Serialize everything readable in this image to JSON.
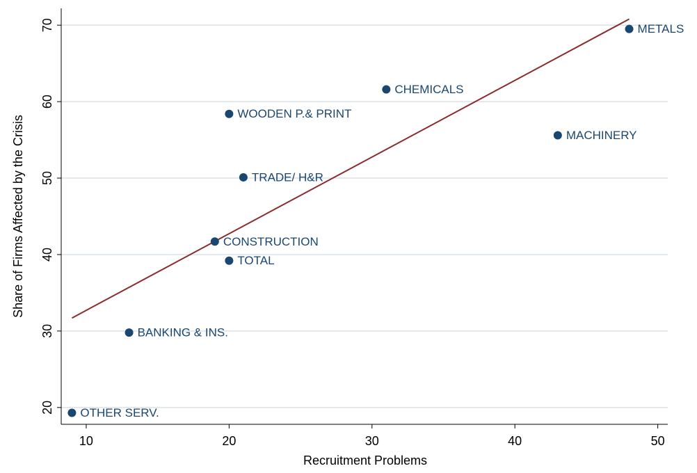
{
  "chart_data": {
    "type": "scatter",
    "x_label": "Recruitment Problems",
    "y_label": "Share of Firms Affected by the Crisis",
    "labels": [
      "METALS",
      "CHEMICALS",
      "WOODEN P.& PRINT",
      "MACHINERY",
      "TRADE/ H&R",
      "CONSTRUCTION",
      "TOTAL",
      "BANKING & INS.",
      "OTHER SERV."
    ],
    "x": [
      48,
      31,
      20,
      43,
      21,
      19,
      20,
      13,
      9
    ],
    "y": [
      69.5,
      61.6,
      58.4,
      55.6,
      50.1,
      41.7,
      39.2,
      29.8,
      19.3
    ],
    "color": "#1a476f",
    "fit": {
      "x": [
        9,
        48
      ],
      "y": [
        31.7,
        70.8
      ],
      "color": "#8b2c2c"
    },
    "xlim": [
      8.25,
      50.7
    ],
    "xticks": [
      10,
      20,
      30,
      40,
      50
    ],
    "ylim": [
      17.8,
      72.2
    ],
    "yticks": [
      20,
      30,
      40,
      50,
      60,
      70
    ],
    "grid": true
  }
}
